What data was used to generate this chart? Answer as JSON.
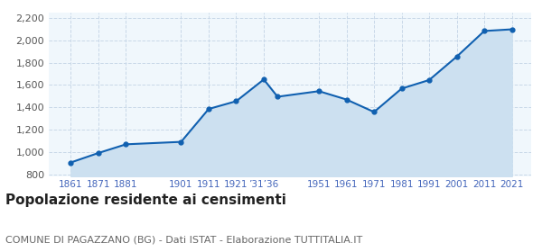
{
  "years": [
    1861,
    1871,
    1881,
    1901,
    1911,
    1921,
    1931,
    1936,
    1951,
    1961,
    1971,
    1981,
    1991,
    2001,
    2011,
    2021
  ],
  "population": [
    905,
    990,
    1068,
    1090,
    1385,
    1455,
    1650,
    1495,
    1545,
    1470,
    1358,
    1568,
    1645,
    1855,
    2085,
    2100
  ],
  "line_color": "#1060b0",
  "fill_color": "#cce0f0",
  "marker_color": "#1060b0",
  "background_color": "#ffffff",
  "plot_bg_color": "#f0f7fc",
  "ylim": [
    780,
    2250
  ],
  "yticks": [
    800,
    1000,
    1200,
    1400,
    1600,
    1800,
    2000,
    2200
  ],
  "xlim_left": 1853,
  "xlim_right": 2028,
  "x_tick_positions": [
    1861,
    1871,
    1881,
    1901,
    1911,
    1921,
    1931,
    1951,
    1961,
    1971,
    1981,
    1991,
    2001,
    2011,
    2021
  ],
  "x_tick_labels": [
    "1861",
    "1871",
    "1881",
    "1901",
    "1911",
    "1921",
    "’31’36",
    "1951",
    "1961",
    "1971",
    "1981",
    "1991",
    "2001",
    "2011",
    "2021"
  ],
  "title": "Popolazione residente ai censimenti",
  "subtitle": "COMUNE DI PAGAZZANO (BG) - Dati ISTAT - Elaborazione TUTTITALIA.IT",
  "title_fontsize": 11,
  "subtitle_fontsize": 8,
  "grid_color": "#c8d8e8",
  "tick_color": "#4466bb",
  "ytick_color": "#555555"
}
